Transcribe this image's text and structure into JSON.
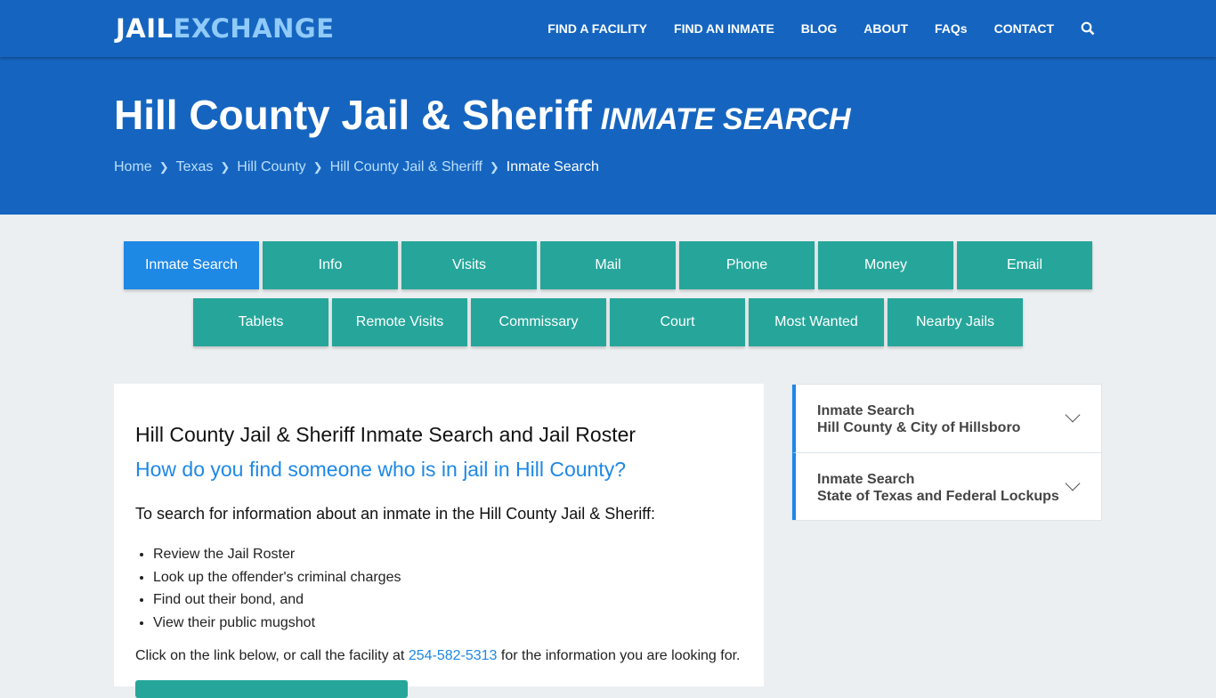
{
  "header": {
    "logo_part1": "JAIL",
    "logo_part2": "EXCHANGE",
    "nav": [
      "FIND A FACILITY",
      "FIND AN INMATE",
      "BLOG",
      "ABOUT",
      "FAQs",
      "CONTACT"
    ],
    "search_icon": "search-icon"
  },
  "hero": {
    "title": "Hill County Jail & Sheriff",
    "subtitle": "INMATE SEARCH",
    "breadcrumb": [
      "Home",
      "Texas",
      "Hill County",
      "Hill County Jail & Sheriff",
      "Inmate Search"
    ]
  },
  "tabs": {
    "row1": [
      "Inmate Search",
      "Info",
      "Visits",
      "Mail",
      "Phone",
      "Money",
      "Email"
    ],
    "row2": [
      "Tablets",
      "Remote Visits",
      "Commissary",
      "Court",
      "Most Wanted",
      "Nearby Jails"
    ],
    "active": "Inmate Search"
  },
  "main": {
    "heading": "Hill County Jail & Sheriff Inmate Search and Jail Roster",
    "question": "How do you find someone who is in jail in Hill County?",
    "intro": "To search for information about an inmate in the Hill County Jail & Sheriff:",
    "bullets": [
      "Review the Jail Roster",
      "Look up the offender's criminal charges",
      "Find out their bond, and",
      "View their public mugshot"
    ],
    "cta_before": "Click on the link below, or call the facility at ",
    "phone": "254-582-5313",
    "cta_after": " for the information you are looking for."
  },
  "sidebar": [
    {
      "title": "Inmate Search",
      "subtitle": "Hill County & City of Hillsboro"
    },
    {
      "title": "Inmate Search",
      "subtitle": "State of Texas and Federal Lockups"
    }
  ],
  "colors": {
    "primary": "#1565c0",
    "teal": "#26a69a",
    "active": "#1e88e5"
  }
}
